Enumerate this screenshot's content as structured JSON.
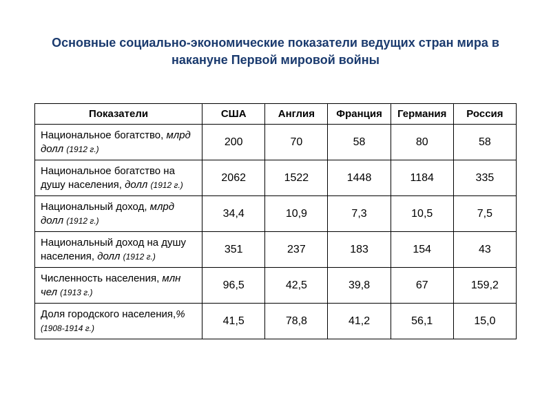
{
  "title": "Основные социально-экономические показатели ведущих стран мира в накануне Первой мировой войны",
  "table": {
    "headers": [
      "Показатели",
      "США",
      "Англия",
      "Франция",
      "Германия",
      "Россия"
    ],
    "rows": [
      {
        "label_main": "Национальное богатство, ",
        "label_unit": "млрд долл ",
        "label_year": "(1912 г.)",
        "values": [
          "200",
          "70",
          "58",
          "80",
          "58"
        ]
      },
      {
        "label_main": "Национальное богатство на душу населения, ",
        "label_unit": "долл ",
        "label_year": "(1912 г.)",
        "values": [
          "2062",
          "1522",
          "1448",
          "1184",
          "335"
        ]
      },
      {
        "label_main": "Национальный доход, ",
        "label_unit": "млрд долл ",
        "label_year": "(1912 г.)",
        "values": [
          "34,4",
          "10,9",
          "7,3",
          "10,5",
          "7,5"
        ]
      },
      {
        "label_main": "Национальный доход на душу населения, ",
        "label_unit": "долл ",
        "label_year": "(1912 г.)",
        "values": [
          "351",
          "237",
          "183",
          "154",
          "43"
        ]
      },
      {
        "label_main": "Численность населения, ",
        "label_unit": "млн чел ",
        "label_year": "(1913 г.)",
        "values": [
          "96,5",
          "42,5",
          "39,8",
          "67",
          "159,2"
        ]
      },
      {
        "label_main": "Доля городского населения,",
        "label_unit": "% ",
        "label_year": "(1908-1914 г.)",
        "values": [
          "41,5",
          "78,8",
          "41,2",
          "56,1",
          "15,0"
        ]
      }
    ]
  },
  "styling": {
    "title_color": "#1a3a6e",
    "title_fontsize": 18,
    "border_color": "#000000",
    "background_color": "#ffffff",
    "header_fontsize": 15,
    "data_fontsize": 16,
    "label_fontsize": 15,
    "year_fontsize": 12,
    "label_col_width": 240,
    "data_col_width": 90
  }
}
